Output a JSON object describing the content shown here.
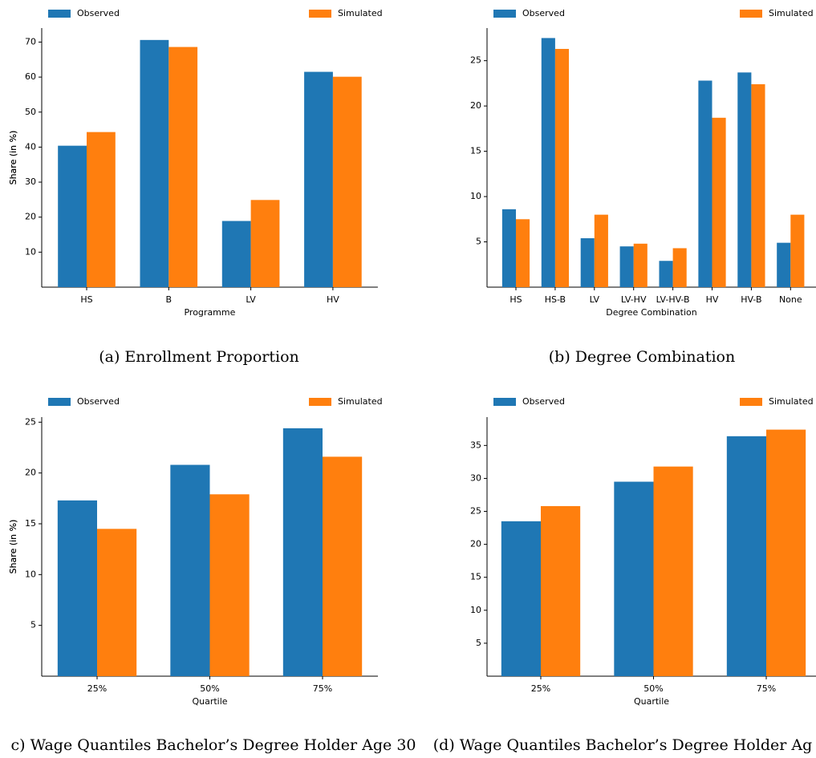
{
  "chart_data": [
    {
      "type": "bar",
      "caption": "(a) Enrollment Proportion",
      "x_label": "Programme",
      "y_label": "Share (in %)",
      "categories": [
        "HS",
        "B",
        "LV",
        "HV"
      ],
      "series": [
        {
          "name": "Observed",
          "color": "#1f77b4",
          "values": [
            40.4,
            70.6,
            18.9,
            61.5
          ]
        },
        {
          "name": "Simulated",
          "color": "#ff7f0e",
          "values": [
            44.3,
            68.6,
            24.9,
            60.1
          ]
        }
      ],
      "ylim": [
        0,
        74
      ],
      "yticks": [
        10,
        20,
        30,
        40,
        50,
        60,
        70
      ],
      "grid": false,
      "legend": "top"
    },
    {
      "type": "bar",
      "caption": "(b) Degree Combination",
      "x_label": "Degree Combination",
      "y_label": "Share (in %)",
      "categories": [
        "HS",
        "HS-B",
        "LV",
        "LV-HV",
        "LV-HV-B",
        "HV",
        "HV-B",
        "None"
      ],
      "series": [
        {
          "name": "Observed",
          "color": "#1f77b4",
          "values": [
            8.6,
            27.5,
            5.4,
            4.5,
            2.9,
            22.8,
            23.7,
            4.9
          ]
        },
        {
          "name": "Simulated",
          "color": "#ff7f0e",
          "values": [
            7.5,
            26.3,
            8.0,
            4.8,
            4.3,
            18.7,
            22.4,
            8.0
          ]
        }
      ],
      "ylim": [
        0,
        28.6
      ],
      "yticks": [
        5,
        10,
        15,
        20,
        25
      ],
      "grid": false,
      "legend": "top"
    },
    {
      "type": "bar",
      "caption": "c) Wage Quantiles Bachelor’s Degree Holder Age 30",
      "x_label": "Quartile",
      "y_label": "Share (in %)",
      "categories": [
        "25%",
        "50%",
        "75%"
      ],
      "series": [
        {
          "name": "Observed",
          "color": "#1f77b4",
          "values": [
            17.3,
            20.8,
            24.4
          ]
        },
        {
          "name": "Simulated",
          "color": "#ff7f0e",
          "values": [
            14.5,
            17.9,
            21.6
          ]
        }
      ],
      "ylim": [
        0,
        25.5
      ],
      "yticks": [
        5,
        10,
        15,
        20,
        25
      ],
      "grid": false,
      "legend": "top"
    },
    {
      "type": "bar",
      "caption": "(d) Wage Quantiles Bachelor’s Degree Holder Ag",
      "x_label": "Quartile",
      "y_label": "Share (in %)",
      "categories": [
        "25%",
        "50%",
        "75%"
      ],
      "series": [
        {
          "name": "Observed",
          "color": "#1f77b4",
          "values": [
            23.5,
            29.5,
            36.4
          ]
        },
        {
          "name": "Simulated",
          "color": "#ff7f0e",
          "values": [
            25.8,
            31.8,
            37.4
          ]
        }
      ],
      "ylim": [
        0,
        39.3
      ],
      "yticks": [
        5,
        10,
        15,
        20,
        25,
        30,
        35
      ],
      "grid": false,
      "legend": "top"
    }
  ]
}
